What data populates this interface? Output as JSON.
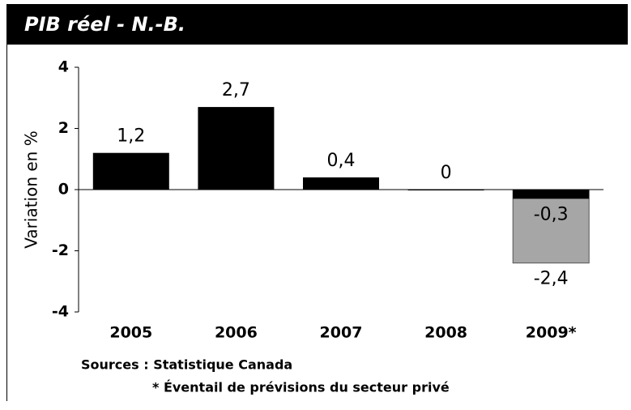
{
  "chart_data": {
    "type": "bar",
    "title": "PIB réel - N.-B.",
    "y_label": "Variation en %",
    "categories": [
      "2005",
      "2006",
      "2007",
      "2008",
      "2009*"
    ],
    "series": [
      {
        "color": "#a6a6a6",
        "values": [
          null,
          null,
          null,
          null,
          -2.4
        ],
        "value_labels": [
          null,
          null,
          null,
          null,
          "-2,4"
        ]
      },
      {
        "color": "#000000",
        "values": [
          1.2,
          2.7,
          0.4,
          0,
          -0.3
        ],
        "value_labels": [
          "1,2",
          "2,7",
          "0,4",
          "0",
          "-0,3"
        ]
      }
    ],
    "ylim": [
      -4,
      4
    ],
    "yticks": [
      4,
      2,
      0,
      -2,
      -4
    ],
    "grid": false,
    "notes": [
      "Sources : Statistique Canada",
      "* Éventail de prévisions du secteur privé"
    ]
  }
}
